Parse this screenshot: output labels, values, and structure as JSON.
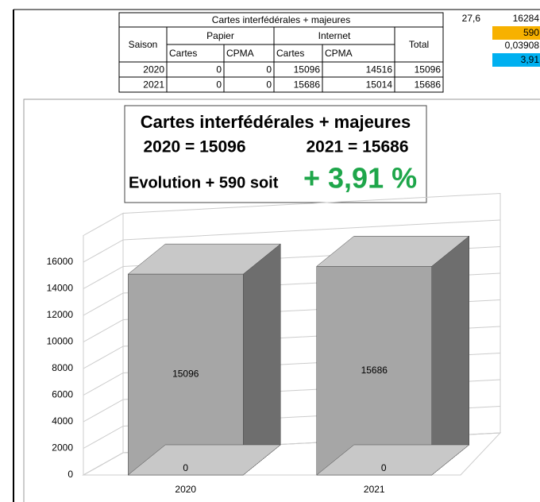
{
  "table": {
    "title": "Cartes interfédérales + majeures",
    "headers": [
      "Saison",
      "Papier",
      "Internet",
      "Total"
    ],
    "subheaders": [
      "Cartes",
      "CPMA",
      "Cartes",
      "CPMA"
    ],
    "rows": [
      [
        "2020",
        0,
        0,
        15096,
        14516,
        15096
      ],
      [
        "2021",
        0,
        0,
        15686,
        15014,
        15686
      ]
    ]
  },
  "side_cells": [
    "27,6",
    "16284",
    "590",
    "0,03908",
    "3,91"
  ],
  "chart_data": {
    "type": "bar",
    "title": "Cartes interfédérales + majeures",
    "annotations": [
      "2020 = 15096",
      "2021 = 15686",
      "Evolution + 590 soit",
      "+ 3,91 %"
    ],
    "categories": [
      "2020",
      "2021"
    ],
    "series": [
      {
        "values": [
          15096,
          15686
        ],
        "color": "#a6a6a6"
      },
      {
        "values": [
          0,
          0
        ],
        "color": "#a6a6a6"
      }
    ],
    "ylim": [
      0,
      18000
    ],
    "yticks": [
      0,
      2000,
      4000,
      6000,
      8000,
      10000,
      12000,
      14000,
      16000
    ],
    "grid": true
  }
}
